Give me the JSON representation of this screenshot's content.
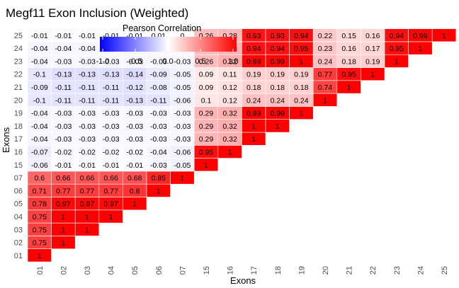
{
  "chart_data": {
    "type": "heatmap",
    "title": "Megf11 Exon Inclusion (Weighted)",
    "xlabel": "Exons",
    "ylabel": "Exons",
    "legend": {
      "title": "Pearson Correlation",
      "placement": "top-left",
      "ticks": [
        "-1.0",
        "-0.5",
        "0.0",
        "0.5",
        "1.0"
      ],
      "range": [
        -1,
        1
      ],
      "colors": {
        "low": "#0000ff",
        "mid": "#ffffff",
        "high": "#ff0000"
      }
    },
    "categories": [
      "01",
      "02",
      "03",
      "04",
      "05",
      "06",
      "07",
      "15",
      "16",
      "17",
      "18",
      "19",
      "20",
      "21",
      "22",
      "23",
      "24",
      "25"
    ],
    "rows": [
      [
        "1"
      ],
      [
        "0.75",
        "1"
      ],
      [
        "0.75",
        "1",
        "1"
      ],
      [
        "0.75",
        "1",
        "1",
        "1"
      ],
      [
        "0.78",
        "0.97",
        "0.97",
        "0.97",
        "1"
      ],
      [
        "0.71",
        "0.77",
        "0.77",
        "0.77",
        "0.8",
        "1"
      ],
      [
        "0.6",
        "0.66",
        "0.66",
        "0.66",
        "0.68",
        "0.85",
        "1"
      ],
      [
        "-0.06",
        "-0.01",
        "-0.01",
        "-0.01",
        "-0.01",
        "-0.03",
        "-0.05",
        "1"
      ],
      [
        "-0.07",
        "-0.02",
        "-0.02",
        "-0.02",
        "-0.02",
        "-0.04",
        "-0.06",
        "0.95",
        "1"
      ],
      [
        "-0.04",
        "-0.03",
        "-0.03",
        "-0.03",
        "-0.03",
        "-0.03",
        "-0.03",
        "0.29",
        "0.32",
        "1"
      ],
      [
        "-0.04",
        "-0.03",
        "-0.03",
        "-0.03",
        "-0.03",
        "-0.03",
        "-0.03",
        "0.29",
        "0.32",
        "1",
        "1"
      ],
      [
        "-0.04",
        "-0.03",
        "-0.03",
        "-0.03",
        "-0.03",
        "-0.03",
        "-0.03",
        "0.29",
        "0.32",
        "0.99",
        "0.99",
        "1"
      ],
      [
        "-0.1",
        "-0.11",
        "-0.11",
        "-0.11",
        "-0.13",
        "-0.11",
        "-0.06",
        "0.1",
        "0.12",
        "0.24",
        "0.24",
        "0.24",
        "1"
      ],
      [
        "-0.09",
        "-0.11",
        "-0.11",
        "-0.11",
        "-0.12",
        "-0.08",
        "-0.05",
        "0.09",
        "0.12",
        "0.18",
        "0.18",
        "0.18",
        "0.74",
        "1"
      ],
      [
        "-0.1",
        "-0.13",
        "-0.13",
        "-0.13",
        "-0.14",
        "-0.09",
        "-0.05",
        "0.09",
        "0.11",
        "0.19",
        "0.19",
        "0.19",
        "0.77",
        "0.95",
        "1"
      ],
      [
        "-0.04",
        "-0.03",
        "-0.03",
        "-0.03",
        "-0.03",
        "-0.03",
        "-0.03",
        "0.26",
        "0.32",
        "0.99",
        "0.99",
        "1",
        "0.24",
        "0.18",
        "0.19",
        "1"
      ],
      [
        "-0.04",
        "-0.04",
        "-0.04",
        "-0.04",
        "-0.04",
        "-0.03",
        "-0.03",
        "0.26",
        "0.29",
        "0.94",
        "0.94",
        "0.95",
        "0.23",
        "0.16",
        "0.17",
        "0.95",
        "1"
      ],
      [
        "-0.01",
        "-0.01",
        "-0.01",
        "-0.01",
        "-0.01",
        "0.01",
        "0",
        "0.26",
        "0.28",
        "0.93",
        "0.93",
        "0.94",
        "0.22",
        "0.15",
        "0.16",
        "0.94",
        "0.99",
        "1"
      ]
    ]
  }
}
